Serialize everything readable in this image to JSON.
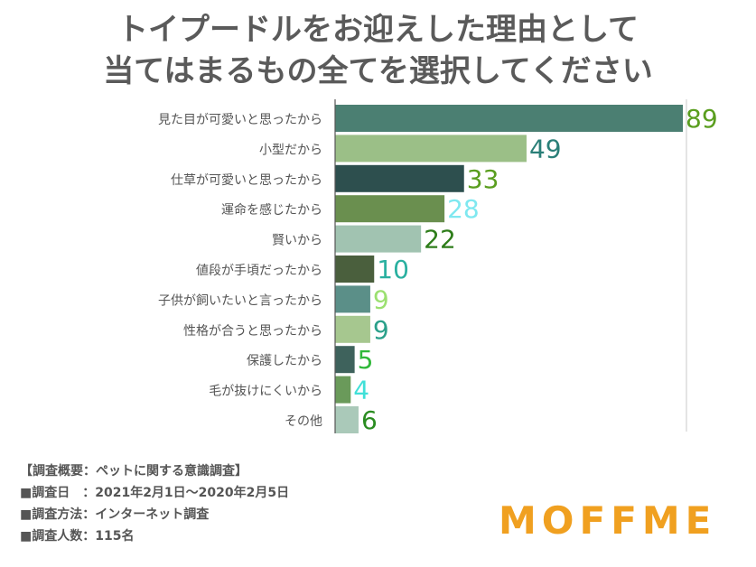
{
  "title_line1": "トイプードルをお迎えした理由として",
  "title_line2": "当てはまるもの全てを選択してください",
  "footer": {
    "line1": "【調査概要：ペットに関する意識調査】",
    "line2": "■調査日　：2021年2月1日〜2020年2月5日",
    "line3": "■調査方法：インターネット調査",
    "line4": "■調査人数：115名"
  },
  "logo": "MOFFME",
  "chart_data": {
    "type": "bar",
    "orientation": "horizontal",
    "categories": [
      "見た目が可愛いと思ったから",
      "小型だから",
      "仕草が可愛いと思ったから",
      "運命を感じたから",
      "賢いから",
      "値段が手頃だったから",
      "子供が飼いたいと言ったから",
      "性格が合うと思ったから",
      "保護したから",
      "毛が抜けにくいから",
      "その他"
    ],
    "values": [
      89,
      49,
      33,
      28,
      22,
      10,
      9,
      9,
      5,
      4,
      6
    ],
    "bar_colors": [
      "#4b7f72",
      "#9bbf87",
      "#2d4f4e",
      "#6a8f4f",
      "#a1c3b1",
      "#4a5f3d",
      "#5b8f88",
      "#a6c78f",
      "#3e625c",
      "#6a9a5a",
      "#aac9b9"
    ],
    "label_colors": [
      "#5a9e1f",
      "#2a7f78",
      "#5a9e1f",
      "#7fe8f0",
      "#2e7d1a",
      "#2ab0a0",
      "#9be070",
      "#2aa08a",
      "#30b83a",
      "#40e0d8",
      "#2a8c20"
    ],
    "xlim": [
      0,
      89
    ],
    "grid": false
  }
}
